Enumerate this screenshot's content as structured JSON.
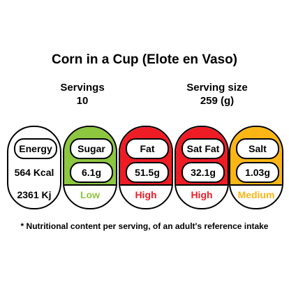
{
  "product": {
    "title": "Corn in a Cup (Elote en Vaso)"
  },
  "servings": {
    "label": "Servings",
    "value": "10"
  },
  "serving_size": {
    "label": "Serving size",
    "value": "259 (g)"
  },
  "energy": {
    "label": "Energy",
    "kcal": "564 Kcal",
    "kj": "2361 Kj"
  },
  "nutrients": [
    {
      "label": "Sugar",
      "value": "6.1g",
      "level": "Low",
      "band_color": "#8DC63F",
      "level_color": "#8DC63F"
    },
    {
      "label": "Fat",
      "value": "51.5g",
      "level": "High",
      "band_color": "#EE1C25",
      "level_color": "#EE1C25"
    },
    {
      "label": "Sat Fat",
      "value": "32.1g",
      "level": "High",
      "band_color": "#EE1C25",
      "level_color": "#EE1C25"
    },
    {
      "label": "Salt",
      "value": "1.03g",
      "level": "Medium",
      "band_color": "#FBB615",
      "level_color": "#FBB615"
    }
  ],
  "footnote": "* Nutritional content per serving, of an adult's reference intake"
}
